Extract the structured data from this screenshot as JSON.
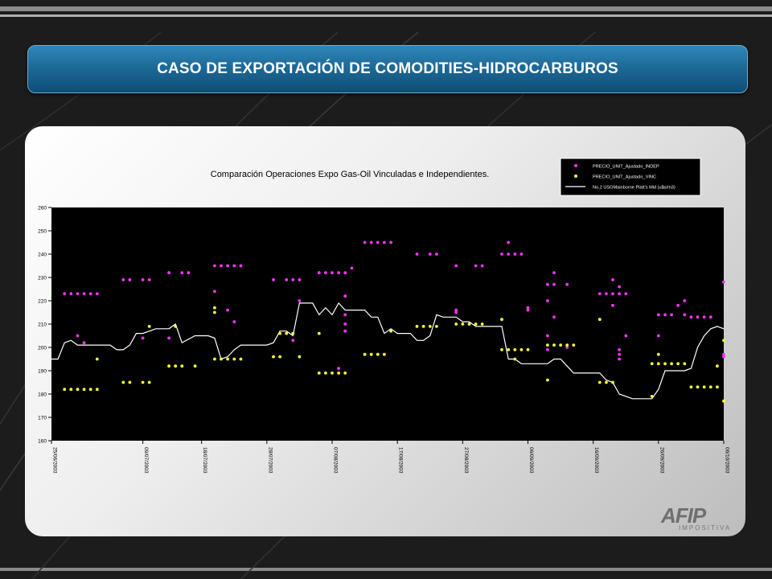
{
  "page": {
    "title": "CASO DE EXPORTACIÓN DE COMODITIES-HIDROCARBUROS",
    "logo": {
      "mark": "AFIP",
      "sub": "IMPOSITIVA"
    }
  },
  "colors": {
    "background": "#1c1c1c",
    "title_bar": "#1d6a98",
    "plot_bg": "#000000",
    "indep": "#ff33ff",
    "vinc": "#ffff33",
    "line": "#ffffff"
  },
  "chart_data": {
    "type": "scatter",
    "title": "Comparación Operaciones Expo Gas-Oil Vinculadas e Independientes.",
    "ylim": [
      160,
      260
    ],
    "yticks": [
      160,
      170,
      180,
      190,
      200,
      210,
      220,
      230,
      240,
      250,
      260
    ],
    "xlim": [
      "2003-06-25",
      "2003-10-06"
    ],
    "xticks": [
      "25/06/2003",
      "09/07/2003",
      "18/07/2003",
      "28/07/2003",
      "07/08/2003",
      "17/08/2003",
      "27/08/2003",
      "06/09/2003",
      "16/09/2003",
      "26/09/2003",
      "06/10/2003"
    ],
    "legend": {
      "position": "top-right"
    },
    "grid": false,
    "series": [
      {
        "name": "PRECIO_UNIT_Ajustado_INDEP",
        "kind": "points",
        "color": "#ff33ff",
        "points": [
          [
            "2003-06-27",
            223
          ],
          [
            "2003-06-28",
            223
          ],
          [
            "2003-06-29",
            205
          ],
          [
            "2003-06-29",
            223
          ],
          [
            "2003-06-30",
            202
          ],
          [
            "2003-06-30",
            223
          ],
          [
            "2003-07-01",
            223
          ],
          [
            "2003-07-02",
            223
          ],
          [
            "2003-07-06",
            229
          ],
          [
            "2003-07-07",
            229
          ],
          [
            "2003-07-09",
            204
          ],
          [
            "2003-07-09",
            229
          ],
          [
            "2003-07-10",
            229
          ],
          [
            "2003-07-13",
            232
          ],
          [
            "2003-07-13",
            204
          ],
          [
            "2003-07-15",
            232
          ],
          [
            "2003-07-16",
            232
          ],
          [
            "2003-07-20",
            224
          ],
          [
            "2003-07-20",
            235
          ],
          [
            "2003-07-21",
            235
          ],
          [
            "2003-07-22",
            235
          ],
          [
            "2003-07-22",
            216
          ],
          [
            "2003-07-23",
            235
          ],
          [
            "2003-07-23",
            211
          ],
          [
            "2003-07-24",
            235
          ],
          [
            "2003-07-29",
            229
          ],
          [
            "2003-07-31",
            229
          ],
          [
            "2003-08-01",
            229
          ],
          [
            "2003-08-01",
            203
          ],
          [
            "2003-08-02",
            229
          ],
          [
            "2003-08-02",
            220
          ],
          [
            "2003-08-05",
            232
          ],
          [
            "2003-08-06",
            232
          ],
          [
            "2003-08-07",
            232
          ],
          [
            "2003-08-08",
            232
          ],
          [
            "2003-08-08",
            191
          ],
          [
            "2003-08-09",
            232
          ],
          [
            "2003-08-09",
            222
          ],
          [
            "2003-08-09",
            214
          ],
          [
            "2003-08-09",
            210
          ],
          [
            "2003-08-09",
            207
          ],
          [
            "2003-08-10",
            234
          ],
          [
            "2003-08-12",
            245
          ],
          [
            "2003-08-13",
            245
          ],
          [
            "2003-08-14",
            245
          ],
          [
            "2003-08-15",
            245
          ],
          [
            "2003-08-16",
            245
          ],
          [
            "2003-08-20",
            240
          ],
          [
            "2003-08-22",
            240
          ],
          [
            "2003-08-23",
            240
          ],
          [
            "2003-08-26",
            235
          ],
          [
            "2003-08-26",
            216
          ],
          [
            "2003-08-26",
            215
          ],
          [
            "2003-08-29",
            235
          ],
          [
            "2003-08-30",
            235
          ],
          [
            "2003-09-02",
            240
          ],
          [
            "2003-09-03",
            240
          ],
          [
            "2003-09-03",
            245
          ],
          [
            "2003-09-04",
            240
          ],
          [
            "2003-09-05",
            240
          ],
          [
            "2003-09-06",
            217
          ],
          [
            "2003-09-06",
            216
          ],
          [
            "2003-09-09",
            227
          ],
          [
            "2003-09-09",
            220
          ],
          [
            "2003-09-09",
            205
          ],
          [
            "2003-09-09",
            199
          ],
          [
            "2003-09-10",
            232
          ],
          [
            "2003-09-10",
            227
          ],
          [
            "2003-09-10",
            213
          ],
          [
            "2003-09-12",
            227
          ],
          [
            "2003-09-12",
            200
          ],
          [
            "2003-09-17",
            223
          ],
          [
            "2003-09-18",
            223
          ],
          [
            "2003-09-19",
            223
          ],
          [
            "2003-09-19",
            229
          ],
          [
            "2003-09-19",
            218
          ],
          [
            "2003-09-20",
            223
          ],
          [
            "2003-09-20",
            226
          ],
          [
            "2003-09-20",
            199
          ],
          [
            "2003-09-20",
            197
          ],
          [
            "2003-09-20",
            195
          ],
          [
            "2003-09-21",
            223
          ],
          [
            "2003-09-21",
            205
          ],
          [
            "2003-09-26",
            214
          ],
          [
            "2003-09-26",
            205
          ],
          [
            "2003-09-27",
            214
          ],
          [
            "2003-09-28",
            214
          ],
          [
            "2003-09-29",
            218
          ],
          [
            "2003-09-30",
            220
          ],
          [
            "2003-09-30",
            214
          ],
          [
            "2003-10-01",
            213
          ],
          [
            "2003-10-02",
            213
          ],
          [
            "2003-10-03",
            213
          ],
          [
            "2003-10-04",
            213
          ],
          [
            "2003-10-06",
            228
          ],
          [
            "2003-10-06",
            197
          ],
          [
            "2003-10-06",
            196
          ]
        ]
      },
      {
        "name": "PRECIO_UNIT_Ajustado_VINC",
        "kind": "points",
        "color": "#ffff33",
        "points": [
          [
            "2003-06-27",
            182
          ],
          [
            "2003-06-28",
            182
          ],
          [
            "2003-06-29",
            182
          ],
          [
            "2003-06-30",
            182
          ],
          [
            "2003-07-01",
            182
          ],
          [
            "2003-07-02",
            182
          ],
          [
            "2003-07-02",
            195
          ],
          [
            "2003-07-06",
            185
          ],
          [
            "2003-07-07",
            185
          ],
          [
            "2003-07-09",
            185
          ],
          [
            "2003-07-10",
            185
          ],
          [
            "2003-07-10",
            209
          ],
          [
            "2003-07-13",
            192
          ],
          [
            "2003-07-14",
            192
          ],
          [
            "2003-07-14",
            209
          ],
          [
            "2003-07-15",
            192
          ],
          [
            "2003-07-17",
            192
          ],
          [
            "2003-07-20",
            217
          ],
          [
            "2003-07-20",
            215
          ],
          [
            "2003-07-20",
            195
          ],
          [
            "2003-07-21",
            195
          ],
          [
            "2003-07-22",
            195
          ],
          [
            "2003-07-23",
            195
          ],
          [
            "2003-07-24",
            195
          ],
          [
            "2003-07-29",
            196
          ],
          [
            "2003-07-30",
            196
          ],
          [
            "2003-07-30",
            206
          ],
          [
            "2003-07-31",
            206
          ],
          [
            "2003-08-01",
            206
          ],
          [
            "2003-08-02",
            196
          ],
          [
            "2003-08-05",
            206
          ],
          [
            "2003-08-05",
            189
          ],
          [
            "2003-08-06",
            189
          ],
          [
            "2003-08-07",
            189
          ],
          [
            "2003-08-08",
            189
          ],
          [
            "2003-08-09",
            189
          ],
          [
            "2003-08-12",
            197
          ],
          [
            "2003-08-13",
            197
          ],
          [
            "2003-08-14",
            197
          ],
          [
            "2003-08-15",
            197
          ],
          [
            "2003-08-16",
            207
          ],
          [
            "2003-08-20",
            209
          ],
          [
            "2003-08-21",
            209
          ],
          [
            "2003-08-22",
            209
          ],
          [
            "2003-08-23",
            209
          ],
          [
            "2003-08-26",
            210
          ],
          [
            "2003-08-27",
            210
          ],
          [
            "2003-08-28",
            210
          ],
          [
            "2003-08-29",
            210
          ],
          [
            "2003-08-30",
            210
          ],
          [
            "2003-09-02",
            212
          ],
          [
            "2003-09-02",
            199
          ],
          [
            "2003-09-03",
            199
          ],
          [
            "2003-09-04",
            199
          ],
          [
            "2003-09-04",
            195
          ],
          [
            "2003-09-05",
            199
          ],
          [
            "2003-09-06",
            199
          ],
          [
            "2003-09-09",
            201
          ],
          [
            "2003-09-09",
            186
          ],
          [
            "2003-09-10",
            201
          ],
          [
            "2003-09-11",
            201
          ],
          [
            "2003-09-12",
            201
          ],
          [
            "2003-09-13",
            201
          ],
          [
            "2003-09-17",
            212
          ],
          [
            "2003-09-17",
            185
          ],
          [
            "2003-09-18",
            185
          ],
          [
            "2003-09-19",
            185
          ],
          [
            "2003-09-25",
            179
          ],
          [
            "2003-09-25",
            193
          ],
          [
            "2003-09-26",
            197
          ],
          [
            "2003-09-26",
            193
          ],
          [
            "2003-09-27",
            193
          ],
          [
            "2003-09-28",
            193
          ],
          [
            "2003-09-29",
            193
          ],
          [
            "2003-09-30",
            193
          ],
          [
            "2003-10-01",
            183
          ],
          [
            "2003-10-02",
            183
          ],
          [
            "2003-10-03",
            183
          ],
          [
            "2003-10-04",
            183
          ],
          [
            "2003-10-05",
            183
          ],
          [
            "2003-10-05",
            192
          ],
          [
            "2003-10-06",
            203
          ],
          [
            "2003-10-06",
            177
          ]
        ]
      },
      {
        "name": "No.2 USGMainborne Platt's Mid (u$s/m3)",
        "kind": "line",
        "color": "#ffffff",
        "points": [
          [
            "2003-06-25",
            195
          ],
          [
            "2003-06-26",
            195
          ],
          [
            "2003-06-27",
            202
          ],
          [
            "2003-06-28",
            203
          ],
          [
            "2003-06-29",
            201
          ],
          [
            "2003-06-30",
            201
          ],
          [
            "2003-07-01",
            201
          ],
          [
            "2003-07-03",
            201
          ],
          [
            "2003-07-04",
            201
          ],
          [
            "2003-07-05",
            199
          ],
          [
            "2003-07-06",
            199
          ],
          [
            "2003-07-07",
            201
          ],
          [
            "2003-07-08",
            206
          ],
          [
            "2003-07-09",
            206
          ],
          [
            "2003-07-11",
            208
          ],
          [
            "2003-07-13",
            208
          ],
          [
            "2003-07-14",
            210
          ],
          [
            "2003-07-15",
            202
          ],
          [
            "2003-07-17",
            205
          ],
          [
            "2003-07-19",
            205
          ],
          [
            "2003-07-20",
            204
          ],
          [
            "2003-07-21",
            195
          ],
          [
            "2003-07-22",
            196
          ],
          [
            "2003-07-23",
            199
          ],
          [
            "2003-07-24",
            201
          ],
          [
            "2003-07-26",
            201
          ],
          [
            "2003-07-28",
            201
          ],
          [
            "2003-07-29",
            202
          ],
          [
            "2003-07-30",
            207
          ],
          [
            "2003-07-31",
            207
          ],
          [
            "2003-08-01",
            205
          ],
          [
            "2003-08-02",
            219
          ],
          [
            "2003-08-04",
            219
          ],
          [
            "2003-08-05",
            214
          ],
          [
            "2003-08-06",
            217
          ],
          [
            "2003-08-07",
            214
          ],
          [
            "2003-08-08",
            219
          ],
          [
            "2003-08-09",
            216
          ],
          [
            "2003-08-12",
            216
          ],
          [
            "2003-08-13",
            213
          ],
          [
            "2003-08-14",
            213
          ],
          [
            "2003-08-15",
            206
          ],
          [
            "2003-08-16",
            208
          ],
          [
            "2003-08-17",
            206
          ],
          [
            "2003-08-19",
            206
          ],
          [
            "2003-08-20",
            203
          ],
          [
            "2003-08-21",
            203
          ],
          [
            "2003-08-22",
            205
          ],
          [
            "2003-08-23",
            214
          ],
          [
            "2003-08-24",
            213
          ],
          [
            "2003-08-26",
            213
          ],
          [
            "2003-08-27",
            211
          ],
          [
            "2003-08-28",
            211
          ],
          [
            "2003-08-29",
            209
          ],
          [
            "2003-08-30",
            209
          ],
          [
            "2003-09-01",
            209
          ],
          [
            "2003-09-02",
            209
          ],
          [
            "2003-09-03",
            195
          ],
          [
            "2003-09-04",
            195
          ],
          [
            "2003-09-05",
            193
          ],
          [
            "2003-09-07",
            193
          ],
          [
            "2003-09-09",
            193
          ],
          [
            "2003-09-10",
            195
          ],
          [
            "2003-09-11",
            195
          ],
          [
            "2003-09-12",
            192
          ],
          [
            "2003-09-13",
            189
          ],
          [
            "2003-09-17",
            189
          ],
          [
            "2003-09-18",
            186
          ],
          [
            "2003-09-19",
            185
          ],
          [
            "2003-09-20",
            180
          ],
          [
            "2003-09-22",
            178
          ],
          [
            "2003-09-24",
            178
          ],
          [
            "2003-09-25",
            178
          ],
          [
            "2003-09-26",
            182
          ],
          [
            "2003-09-27",
            190
          ],
          [
            "2003-09-30",
            190
          ],
          [
            "2003-10-01",
            191
          ],
          [
            "2003-10-02",
            200
          ],
          [
            "2003-10-03",
            205
          ],
          [
            "2003-10-04",
            208
          ],
          [
            "2003-10-05",
            209
          ],
          [
            "2003-10-06",
            208
          ]
        ]
      }
    ]
  }
}
